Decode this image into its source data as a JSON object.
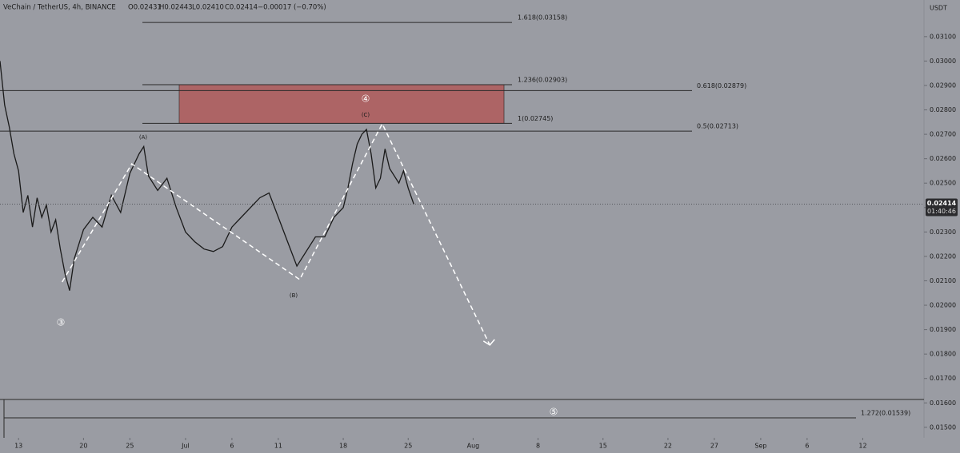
{
  "chart_data": {
    "type": "line",
    "header": {
      "symbol": "VeChain / TetherUS, 4h, BINANCE",
      "ohlc": [
        "O0.02431",
        "H0.02443",
        "L0.02410",
        "C0.02414",
        "−0.00017 (−0.70%)"
      ]
    },
    "currency": "USDT",
    "xlim": [
      -2,
      97.6
    ],
    "xticks": [
      {
        "value": 0,
        "label": "13"
      },
      {
        "value": 7,
        "label": "20"
      },
      {
        "value": 12,
        "label": "25"
      },
      {
        "value": 18,
        "label": "Jul"
      },
      {
        "value": 23,
        "label": "6"
      },
      {
        "value": 28,
        "label": "11"
      },
      {
        "value": 35,
        "label": "18"
      },
      {
        "value": 42,
        "label": "25"
      },
      {
        "value": 49,
        "label": "Aug"
      },
      {
        "value": 56,
        "label": "8"
      },
      {
        "value": 63,
        "label": "15"
      },
      {
        "value": 70,
        "label": "22"
      },
      {
        "value": 75,
        "label": "27"
      },
      {
        "value": 80,
        "label": "Sep"
      },
      {
        "value": 85,
        "label": "6"
      },
      {
        "value": 91,
        "label": "12"
      }
    ],
    "ylim": [
      0.01457,
      0.0325
    ],
    "yticks": [
      {
        "value": 0.015,
        "label": "0.01500"
      },
      {
        "value": 0.016,
        "label": "0.01600"
      },
      {
        "value": 0.017,
        "label": "0.01700"
      },
      {
        "value": 0.018,
        "label": "0.01800"
      },
      {
        "value": 0.019,
        "label": "0.01900"
      },
      {
        "value": 0.02,
        "label": "0.02000"
      },
      {
        "value": 0.021,
        "label": "0.02100"
      },
      {
        "value": 0.022,
        "label": "0.02200"
      },
      {
        "value": 0.023,
        "label": "0.02300"
      },
      {
        "value": 0.024,
        "label": "0.02400"
      },
      {
        "value": 0.025,
        "label": "0.02500"
      },
      {
        "value": 0.026,
        "label": "0.02600"
      },
      {
        "value": 0.027,
        "label": "0.02700"
      },
      {
        "value": 0.028,
        "label": "0.02800"
      },
      {
        "value": 0.029,
        "label": "0.02900"
      },
      {
        "value": 0.03,
        "label": "0.03000"
      },
      {
        "value": 0.031,
        "label": "0.03100"
      }
    ],
    "grid": false,
    "series": [
      {
        "name": "VeChain / TetherUS",
        "color": "#1a1a1a",
        "x": [
          -2,
          -1.5,
          -1,
          -0.5,
          0,
          0.5,
          1,
          1.5,
          2,
          2.5,
          3,
          3.5,
          4,
          4.5,
          5,
          5.5,
          6,
          6.5,
          7,
          8,
          9,
          10,
          11,
          12,
          13,
          13.5,
          14,
          15,
          16,
          17,
          18,
          19,
          20,
          21,
          22,
          23,
          24,
          25,
          26,
          27,
          28,
          29,
          30,
          31,
          32,
          33,
          34,
          35,
          35.5,
          36,
          36.5,
          37,
          37.5,
          38,
          38.5,
          39,
          39.5,
          40,
          41,
          41.5,
          42,
          42.6
        ],
        "values": [
          0.03,
          0.0282,
          0.0273,
          0.0262,
          0.0255,
          0.0238,
          0.0245,
          0.0232,
          0.0244,
          0.0236,
          0.0241,
          0.023,
          0.0235,
          0.0223,
          0.0213,
          0.0206,
          0.0219,
          0.0225,
          0.0231,
          0.0236,
          0.0232,
          0.0245,
          0.0238,
          0.0254,
          0.0262,
          0.0265,
          0.0253,
          0.0247,
          0.0252,
          0.024,
          0.023,
          0.0226,
          0.0223,
          0.0222,
          0.0224,
          0.0232,
          0.0236,
          0.024,
          0.0244,
          0.0246,
          0.0236,
          0.0226,
          0.0216,
          0.0222,
          0.0228,
          0.0228,
          0.0236,
          0.024,
          0.0248,
          0.0258,
          0.0266,
          0.027,
          0.0272,
          0.0262,
          0.0248,
          0.0252,
          0.0264,
          0.0256,
          0.025,
          0.0255,
          0.0248,
          0.02414
        ]
      }
    ],
    "projection": {
      "color": "#ffffff",
      "x": [
        4.7,
        12.2,
        30.3,
        39.2,
        50.8
      ],
      "values": [
        0.02095,
        0.02579,
        0.02105,
        0.02743,
        0.01837
      ]
    },
    "levels": [
      {
        "value": 0.03158,
        "label": "1.618(0.03158)"
      },
      {
        "value": 0.02903,
        "label": "1.236(0.02903)"
      },
      {
        "value": 0.02745,
        "label": "1(0.02745)"
      },
      {
        "value": 0.02879,
        "label": "0.618(0.02879)"
      },
      {
        "value": 0.02713,
        "label": "0.5(0.02713)"
      },
      {
        "value": 0.01539,
        "label": "1.272(0.01539)"
      },
      {
        "value": 0.01614
      }
    ],
    "zone_color": "#b05a5a",
    "annotations": [
      "③",
      "(A)",
      "④",
      "(C)",
      "(B)",
      "⑤"
    ],
    "last_price": 0.02414,
    "countdown": "01:40:46"
  }
}
